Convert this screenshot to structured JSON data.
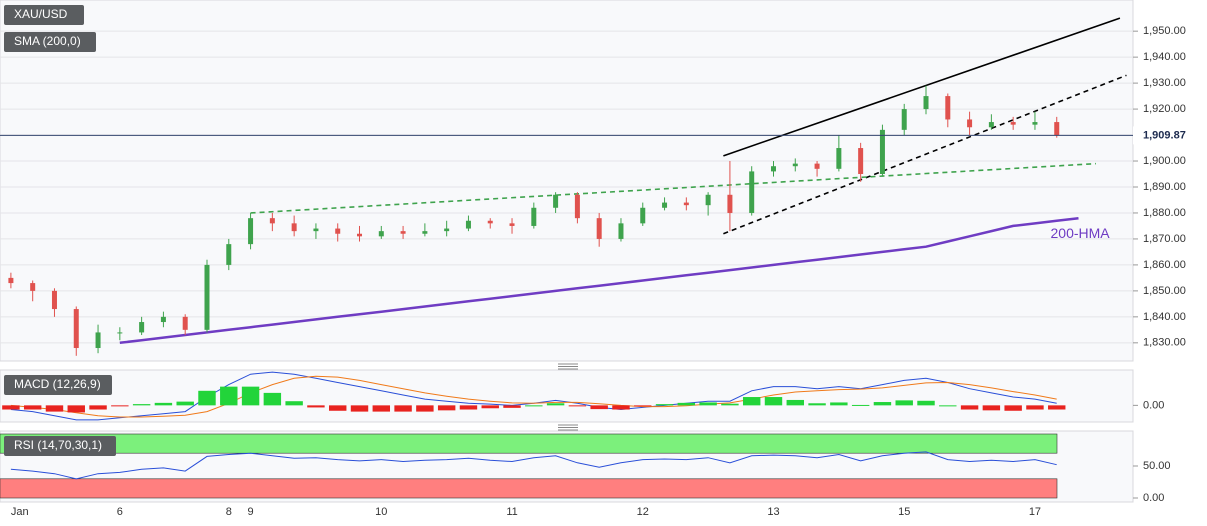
{
  "chart_data": [
    {
      "type": "candlestick",
      "title": "XAU/USD",
      "subtitle": "SMA (200,0)",
      "categories": [
        "Jan",
        null,
        null,
        null,
        null,
        "6",
        null,
        null,
        null,
        null,
        "8",
        "9",
        null,
        null,
        null,
        null,
        null,
        "10",
        null,
        null,
        null,
        null,
        null,
        "11",
        null,
        null,
        null,
        null,
        null,
        "12",
        null,
        null,
        null,
        null,
        null,
        "13",
        null,
        null,
        null,
        null,
        null,
        "15",
        null,
        null,
        null,
        null,
        null,
        "17",
        null,
        null,
        null,
        null
      ],
      "open": [
        1855,
        1853,
        1850,
        1843,
        1828,
        1834,
        1834,
        1838,
        1840,
        1835,
        1860,
        1868,
        1878,
        1876,
        1873,
        1874,
        1872,
        1871,
        1873,
        1872,
        1873,
        1874,
        1877,
        1876,
        1875,
        1882,
        1887,
        1878,
        1870,
        1876,
        1882,
        1884,
        1883,
        1887,
        1880,
        1896,
        1898,
        1899,
        1897,
        1905,
        1895,
        1912,
        1920,
        1925,
        1916,
        1913,
        1915,
        1914,
        1915,
        null,
        null,
        null
      ],
      "high": [
        1857,
        1854,
        1851,
        1844,
        1837,
        1836,
        1840,
        1842,
        1841,
        1862,
        1870,
        1880,
        1880,
        1879,
        1876,
        1876,
        1875,
        1875,
        1875,
        1876,
        1877,
        1879,
        1878,
        1878,
        1884,
        1888,
        1888,
        1880,
        1878,
        1884,
        1886,
        1886,
        1888,
        1900,
        1898,
        1900,
        1901,
        1900,
        1910,
        1907,
        1914,
        1922,
        1929,
        1926,
        1919,
        1918,
        1917,
        1919,
        1917,
        null,
        null,
        null
      ],
      "low": [
        1851,
        1846,
        1840,
        1825,
        1826,
        1831,
        1833,
        1836,
        1833,
        1834,
        1858,
        1866,
        1873,
        1871,
        1870,
        1869,
        1869,
        1870,
        1870,
        1871,
        1871,
        1873,
        1874,
        1872,
        1874,
        1880,
        1876,
        1867,
        1869,
        1875,
        1881,
        1881,
        1879,
        1873,
        1879,
        1894,
        1896,
        1894,
        1896,
        1892,
        1894,
        1910,
        1918,
        1913,
        1910,
        1912,
        1912,
        1912,
        1909,
        null,
        null,
        null
      ],
      "close": [
        1853,
        1850,
        1843,
        1828,
        1834,
        1834,
        1838,
        1840,
        1835,
        1860,
        1868,
        1878,
        1876,
        1873,
        1874,
        1872,
        1871,
        1873,
        1872,
        1873,
        1874,
        1877,
        1876,
        1875,
        1882,
        1887,
        1878,
        1870,
        1876,
        1882,
        1884,
        1883,
        1887,
        1880,
        1896,
        1898,
        1899,
        1897,
        1905,
        1895,
        1912,
        1920,
        1925,
        1916,
        1913,
        1915,
        1914,
        1915,
        1910,
        null,
        null,
        null
      ],
      "up_color": "#3fa34d",
      "down_color": "#e0524e",
      "series": [
        {
          "name": "200-HMA",
          "color": "#6f3cc3",
          "values": [
            null,
            null,
            null,
            null,
            null,
            1830,
            1831,
            1832,
            1833,
            1834,
            1835,
            1836,
            1837,
            1838,
            1839,
            1840,
            1841,
            1842,
            1843,
            1844,
            1845,
            1846,
            1847,
            1848,
            1849,
            1850,
            1851,
            1852,
            1853,
            1854,
            1855,
            1856,
            1857,
            1858,
            1859,
            1860,
            1861,
            1862,
            1863,
            1864,
            1865,
            1866,
            1867,
            1869,
            1871,
            1873,
            1875,
            1876,
            1877,
            1878,
            null,
            null
          ]
        }
      ],
      "trendlines": [
        {
          "x": [
            32.7,
            50.9
          ],
          "y": [
            1902,
            1955
          ],
          "color": "#000000",
          "dashed": false
        },
        {
          "x": [
            32.7,
            51.2
          ],
          "y": [
            1872,
            1933
          ],
          "color": "#000000",
          "dashed": true
        },
        {
          "x": [
            11,
            49.8
          ],
          "y": [
            1880,
            1899
          ],
          "color": "#3fa34d",
          "dashed": true
        }
      ],
      "last_price": {
        "value": 1909.87,
        "label": "1,909.87"
      },
      "ylim": [
        1823,
        1962
      ],
      "yticks": [
        {
          "value": 1830,
          "label": "1,830.00"
        },
        {
          "value": 1840,
          "label": "1,840.00"
        },
        {
          "value": 1850,
          "label": "1,850.00"
        },
        {
          "value": 1860,
          "label": "1,860.00"
        },
        {
          "value": 1870,
          "label": "1,870.00"
        },
        {
          "value": 1880,
          "label": "1,880.00"
        },
        {
          "value": 1890,
          "label": "1,890.00"
        },
        {
          "value": 1900,
          "label": "1,900.00"
        },
        {
          "value": 1910,
          "label": "1,910.00"
        },
        {
          "value": 1920,
          "label": "1,920.00"
        },
        {
          "value": 1930,
          "label": "1,930.00"
        },
        {
          "value": 1940,
          "label": "1,940.00"
        },
        {
          "value": 1950,
          "label": "1,950.00"
        }
      ],
      "grid": true
    },
    {
      "type": "macd",
      "title": "MACD (12,26,9)",
      "series": [
        {
          "kind": "line",
          "color": "#2a4fd8",
          "values": [
            -1,
            -1.5,
            -2.5,
            -3.5,
            -3.5,
            -3,
            -2.5,
            -2,
            -1.5,
            2,
            5,
            7.5,
            8,
            7.5,
            6.5,
            5.5,
            4.5,
            3.5,
            2.5,
            1.5,
            1,
            0.5,
            0.3,
            0,
            0.5,
            1.2,
            0.5,
            -0.5,
            -1,
            -0.5,
            0,
            0.5,
            1,
            1,
            3.5,
            4.5,
            4.5,
            4,
            4.5,
            4,
            5,
            6,
            6.5,
            5.5,
            4,
            3,
            2,
            1.5,
            0.5,
            null,
            null,
            null
          ]
        },
        {
          "kind": "line",
          "color": "#f07a1a",
          "values": [
            0,
            -0.5,
            -1,
            -1.8,
            -2.5,
            -2.8,
            -2.8,
            -2.6,
            -2.4,
            -1.5,
            0.5,
            3,
            5,
            6.5,
            7,
            6.8,
            6,
            5,
            4,
            3,
            2.2,
            1.5,
            1,
            0.6,
            0.5,
            0.7,
            0.7,
            0.4,
            0,
            -0.3,
            -0.3,
            -0.1,
            0.3,
            0.6,
            1.5,
            2.5,
            3.2,
            3.5,
            3.8,
            3.9,
            4.2,
            4.8,
            5.4,
            5.5,
            5,
            4.2,
            3.3,
            2.5,
            1.5,
            null,
            null,
            null
          ]
        },
        {
          "kind": "histogram",
          "up_color": "#22d43a",
          "down_color": "#e8231f",
          "values": [
            -1,
            -1,
            -1.5,
            -1.7,
            -1,
            -0.2,
            0.3,
            0.6,
            0.9,
            3.5,
            4.5,
            4.5,
            3,
            1,
            -0.5,
            -1.3,
            -1.5,
            -1.5,
            -1.5,
            -1.5,
            -1.2,
            -1,
            -0.7,
            -0.6,
            0,
            0.5,
            -0.2,
            -0.9,
            -1,
            -0.2,
            0.3,
            0.6,
            0.7,
            0.4,
            2,
            2,
            1.3,
            0.5,
            0.7,
            0.1,
            0.8,
            1.2,
            1.1,
            0,
            -1,
            -1.2,
            -1.3,
            -1,
            -1,
            null,
            null,
            null
          ]
        }
      ],
      "ylim": [
        -4,
        8.5
      ],
      "yticks": [
        {
          "value": 0,
          "label": "0.00"
        }
      ]
    },
    {
      "type": "line",
      "title": "RSI (14,70,30,1)",
      "series": [
        {
          "color": "#2a4fd8",
          "values": [
            45,
            42,
            38,
            30,
            38,
            40,
            45,
            47,
            42,
            65,
            68,
            70,
            66,
            62,
            63,
            60,
            58,
            60,
            57,
            59,
            60,
            62,
            59,
            57,
            63,
            66,
            55,
            48,
            55,
            60,
            61,
            60,
            63,
            55,
            66,
            67,
            66,
            63,
            68,
            58,
            66,
            70,
            72,
            60,
            57,
            59,
            57,
            60,
            52,
            null,
            null,
            null
          ]
        }
      ],
      "bands": [
        {
          "from": 70,
          "to": 100,
          "color": "#7cf07c"
        },
        {
          "from": 0,
          "to": 30,
          "color": "#ff7f7f"
        }
      ],
      "ylim": [
        0,
        100
      ],
      "yticks": [
        {
          "value": 0,
          "label": "0.00"
        },
        {
          "value": 50,
          "label": "50.00"
        }
      ]
    }
  ]
}
